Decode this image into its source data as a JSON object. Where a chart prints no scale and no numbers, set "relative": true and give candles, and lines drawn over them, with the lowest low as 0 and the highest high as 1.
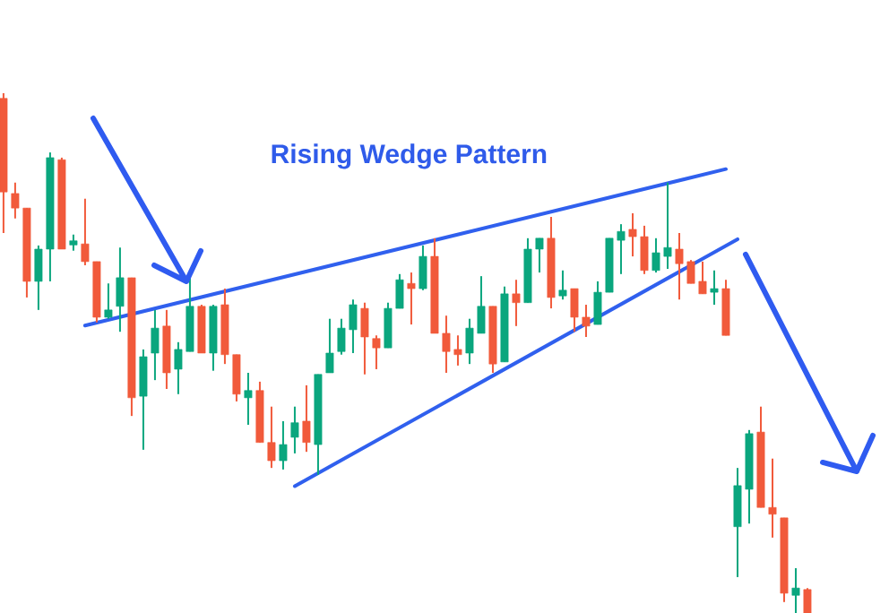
{
  "chart_data": {
    "type": "candlestick",
    "title": "Rising Wedge Pattern",
    "relative": true,
    "categories": [
      null,
      null,
      null,
      null,
      null,
      null,
      null,
      null,
      null,
      null,
      null,
      null,
      null,
      null,
      null,
      null,
      null,
      null,
      null,
      null,
      null,
      null,
      null,
      null,
      null,
      null,
      null,
      null,
      null,
      null,
      null,
      null,
      null,
      null,
      null,
      null,
      null,
      null,
      null,
      null,
      null,
      null,
      null,
      null,
      null,
      null,
      null,
      null,
      null,
      null,
      null,
      null,
      null,
      null,
      null,
      null,
      null,
      null,
      null,
      null,
      null,
      null,
      null,
      null,
      null,
      null,
      null,
      null,
      null,
      null
    ],
    "ohlc": [
      [
        0.99,
        1.0,
        0.731,
        0.81
      ],
      [
        0.807,
        0.828,
        0.759,
        0.779
      ],
      [
        0.779,
        0.779,
        0.607,
        0.638
      ],
      [
        0.638,
        0.707,
        0.583,
        0.7
      ],
      [
        0.7,
        0.886,
        0.638,
        0.876
      ],
      [
        0.872,
        0.876,
        0.7,
        0.7
      ],
      [
        0.71,
        0.728,
        0.697,
        0.714
      ],
      [
        0.71,
        0.797,
        0.669,
        0.676
      ],
      [
        0.676,
        0.676,
        0.559,
        0.569
      ],
      [
        0.569,
        0.634,
        0.566,
        0.583
      ],
      [
        0.59,
        0.703,
        0.541,
        0.645
      ],
      [
        0.645,
        0.645,
        0.379,
        0.414
      ],
      [
        0.417,
        0.507,
        0.314,
        0.493
      ],
      [
        0.5,
        0.583,
        0.448,
        0.548
      ],
      [
        0.552,
        0.583,
        0.431,
        0.462
      ],
      [
        0.469,
        0.521,
        0.421,
        0.507
      ],
      [
        0.503,
        0.645,
        0.503,
        0.59
      ],
      [
        0.59,
        0.593,
        0.5,
        0.5
      ],
      [
        0.5,
        0.593,
        0.466,
        0.59
      ],
      [
        0.593,
        0.624,
        0.479,
        0.497
      ],
      [
        0.497,
        0.497,
        0.407,
        0.421
      ],
      [
        0.414,
        0.462,
        0.362,
        0.428
      ],
      [
        0.428,
        0.445,
        0.328,
        0.328
      ],
      [
        0.328,
        0.397,
        0.279,
        0.293
      ],
      [
        0.293,
        0.369,
        0.276,
        0.324
      ],
      [
        0.338,
        0.397,
        0.307,
        0.366
      ],
      [
        0.369,
        0.438,
        0.31,
        0.328
      ],
      [
        0.324,
        0.459,
        0.266,
        0.459
      ],
      [
        0.462,
        0.566,
        0.462,
        0.5
      ],
      [
        0.503,
        0.566,
        0.497,
        0.548
      ],
      [
        0.545,
        0.603,
        0.5,
        0.593
      ],
      [
        0.586,
        0.597,
        0.459,
        0.531
      ],
      [
        0.528,
        0.534,
        0.469,
        0.51
      ],
      [
        0.51,
        0.597,
        0.51,
        0.586
      ],
      [
        0.586,
        0.652,
        0.586,
        0.641
      ],
      [
        0.634,
        0.655,
        0.555,
        0.624
      ],
      [
        0.624,
        0.707,
        0.621,
        0.686
      ],
      [
        0.686,
        0.721,
        0.538,
        0.538
      ],
      [
        0.538,
        0.572,
        0.462,
        0.503
      ],
      [
        0.507,
        0.534,
        0.476,
        0.497
      ],
      [
        0.5,
        0.566,
        0.479,
        0.548
      ],
      [
        0.538,
        0.648,
        0.538,
        0.59
      ],
      [
        0.59,
        0.59,
        0.462,
        0.479
      ],
      [
        0.483,
        0.628,
        0.483,
        0.614
      ],
      [
        0.614,
        0.641,
        0.552,
        0.597
      ],
      [
        0.597,
        0.721,
        0.597,
        0.7
      ],
      [
        0.7,
        0.721,
        0.655,
        0.721
      ],
      [
        0.721,
        0.762,
        0.586,
        0.607
      ],
      [
        0.61,
        0.659,
        0.603,
        0.621
      ],
      [
        0.624,
        0.624,
        0.541,
        0.569
      ],
      [
        0.569,
        0.593,
        0.531,
        0.552
      ],
      [
        0.555,
        0.638,
        0.555,
        0.617
      ],
      [
        0.617,
        0.721,
        0.617,
        0.721
      ],
      [
        0.717,
        0.748,
        0.652,
        0.734
      ],
      [
        0.738,
        0.769,
        0.686,
        0.724
      ],
      [
        0.724,
        0.745,
        0.652,
        0.659
      ],
      [
        0.659,
        0.721,
        0.655,
        0.693
      ],
      [
        0.686,
        0.828,
        0.662,
        0.703
      ],
      [
        0.7,
        0.731,
        0.603,
        0.672
      ],
      [
        0.676,
        0.679,
        0.634,
        0.634
      ],
      [
        0.638,
        0.676,
        0.614,
        0.614
      ],
      [
        0.617,
        0.659,
        0.593,
        0.624
      ],
      [
        0.624,
        0.641,
        0.534,
        0.534
      ],
      [
        0.166,
        0.279,
        0.069,
        0.245
      ],
      [
        0.238,
        0.352,
        0.172,
        0.345
      ],
      [
        0.348,
        0.397,
        0.203,
        0.203
      ],
      [
        0.203,
        0.297,
        0.145,
        0.19
      ],
      [
        0.183,
        0.183,
        0.021,
        0.038
      ],
      [
        0.034,
        0.086,
        0.0,
        0.048
      ],
      [
        0.045,
        0.048,
        0.0,
        0.0
      ]
    ],
    "colors": [
      "#f15a3b",
      "#f15a3b",
      "#f15a3b",
      "#0aa67e",
      "#0aa67e",
      "#f15a3b",
      "#0aa67e",
      "#f15a3b",
      "#f15a3b",
      "#0aa67e",
      "#0aa67e",
      "#f15a3b",
      "#0aa67e",
      "#0aa67e",
      "#f15a3b",
      "#0aa67e",
      "#0aa67e",
      "#f15a3b",
      "#0aa67e",
      "#f15a3b",
      "#f15a3b",
      "#0aa67e",
      "#f15a3b",
      "#f15a3b",
      "#0aa67e",
      "#0aa67e",
      "#f15a3b",
      "#0aa67e",
      "#0aa67e",
      "#0aa67e",
      "#0aa67e",
      "#f15a3b",
      "#f15a3b",
      "#0aa67e",
      "#0aa67e",
      "#f15a3b",
      "#0aa67e",
      "#f15a3b",
      "#f15a3b",
      "#f15a3b",
      "#0aa67e",
      "#0aa67e",
      "#f15a3b",
      "#0aa67e",
      "#f15a3b",
      "#0aa67e",
      "#0aa67e",
      "#f15a3b",
      "#0aa67e",
      "#f15a3b",
      "#f15a3b",
      "#0aa67e",
      "#0aa67e",
      "#0aa67e",
      "#f15a3b",
      "#f15a3b",
      "#0aa67e",
      "#0aa67e",
      "#f15a3b",
      "#f15a3b",
      "#f15a3b",
      "#0aa67e",
      "#f15a3b",
      "#0aa67e",
      "#0aa67e",
      "#f15a3b",
      "#f15a3b",
      "#f15a3b",
      "#0aa67e",
      "#f15a3b"
    ],
    "series": [
      {
        "type": "line",
        "color": "#3060ee",
        "values": [
          null,
          null,
          null,
          null,
          null,
          null,
          null,
          0.553,
          null,
          null,
          null,
          null,
          null,
          null,
          null,
          null,
          null,
          null,
          null,
          null,
          null,
          null,
          null,
          null,
          null,
          null,
          null,
          null,
          null,
          null,
          null,
          null,
          null,
          null,
          null,
          null,
          null,
          null,
          null,
          null,
          null,
          null,
          null,
          null,
          null,
          null,
          null,
          null,
          null,
          null,
          null,
          null,
          null,
          null,
          null,
          null,
          null,
          null,
          null,
          null,
          null,
          null,
          0.854,
          null,
          null,
          null,
          null,
          null,
          null,
          null
        ]
      },
      {
        "type": "line",
        "color": "#3060ee",
        "values": [
          null,
          null,
          null,
          null,
          null,
          null,
          null,
          null,
          null,
          null,
          null,
          null,
          null,
          null,
          null,
          null,
          null,
          null,
          null,
          null,
          null,
          null,
          null,
          null,
          null,
          0.244,
          null,
          null,
          null,
          null,
          null,
          null,
          null,
          null,
          null,
          null,
          null,
          null,
          null,
          null,
          null,
          null,
          null,
          null,
          null,
          null,
          null,
          null,
          null,
          null,
          null,
          null,
          null,
          null,
          null,
          null,
          null,
          null,
          null,
          null,
          null,
          null,
          null,
          0.719,
          null,
          null,
          null,
          null,
          null,
          null
        ]
      }
    ]
  }
}
